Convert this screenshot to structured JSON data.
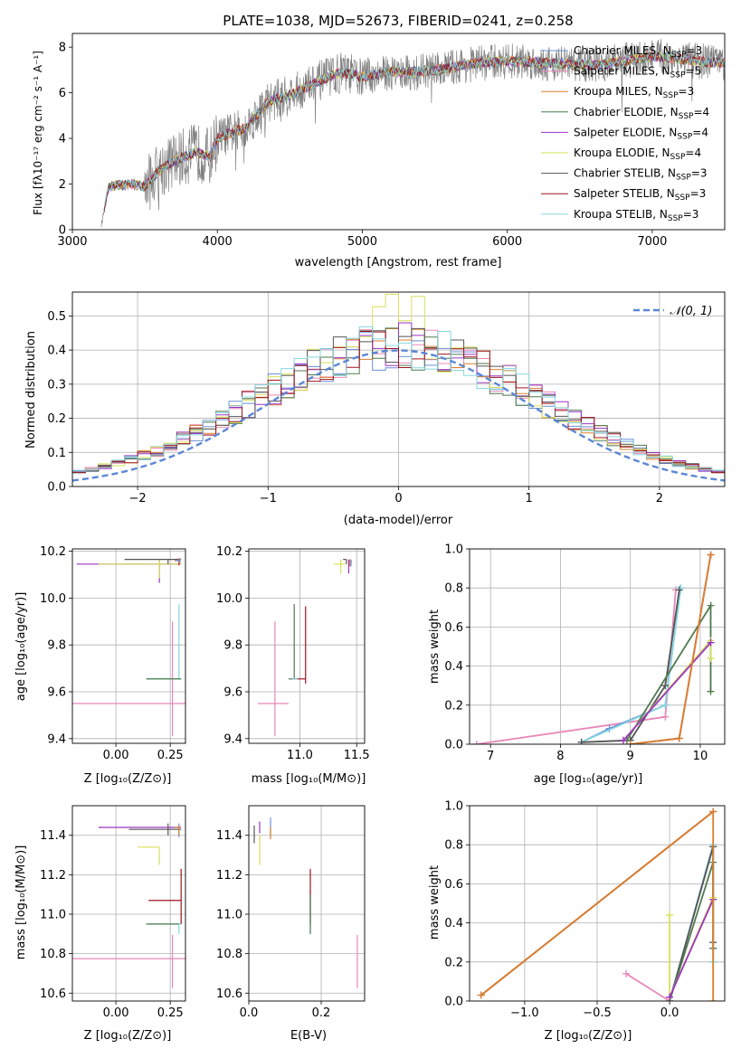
{
  "figure": {
    "title": "PLATE=1038, MJD=52673, FIBERID=0241, z=0.258",
    "spectrum": {
      "xlabel": "wavelength [Angstrom, rest frame]",
      "ylabel": "Flux [fλ10⁻¹⁷ erg cm⁻² s⁻¹ A⁻¹]"
    },
    "histogram": {
      "xlabel": "(data-model)/error",
      "ylabel": "Normed distribution",
      "gauss_label": "𝒩(0, 1)"
    },
    "row3": {
      "z_age_xlabel": "Z [log₁₀(Z/Z⊙)]",
      "z_age_ylabel": "age  [log₁₀(age/yr)]",
      "mass_age_xlabel": "mass [log₁₀(M/M⊙)]",
      "age_weight_xlabel": "age  [log₁₀(age/yr)]",
      "age_weight_ylabel": "mass weight"
    },
    "row4": {
      "z_mass_xlabel": "Z [log₁₀(Z/Z⊙)]",
      "z_mass_ylabel": "mass [log₁₀(M/M⊙)]",
      "ebv_xlabel": "E(B-V)",
      "z_weight_xlabel": "Z [log₁₀(Z/Z⊙)]",
      "z_weight_ylabel": "mass weight"
    }
  },
  "legend": [
    {
      "name": "Chabrier MILES, N_SSP=3",
      "color": "#6a8fd8"
    },
    {
      "name": "Salpeter MILES, N_SSP=5",
      "color": "#e887b8"
    },
    {
      "name": "Kroupa MILES, N_SSP=3",
      "color": "#d9802e"
    },
    {
      "name": "Chabrier ELODIE, N_SSP=4",
      "color": "#4e7a4e"
    },
    {
      "name": "Salpeter ELODIE, N_SSP=4",
      "color": "#9b34c4"
    },
    {
      "name": "Kroupa ELODIE, N_SSP=4",
      "color": "#d6e05a"
    },
    {
      "name": "Chabrier STELIB, N_SSP=3",
      "color": "#555555"
    },
    {
      "name": "Salpeter STELIB, N_SSP=3",
      "color": "#a0141e"
    },
    {
      "name": "Kroupa STELIB, N_SSP=3",
      "color": "#86d8e0"
    }
  ],
  "chart_data": [
    {
      "type": "line",
      "id": "spectrum",
      "xlim": [
        3000,
        7500
      ],
      "ylim": [
        0,
        8.6
      ],
      "xticks": [
        3000,
        4000,
        5000,
        6000,
        7000
      ],
      "yticks": [
        0,
        2,
        4,
        6,
        8
      ],
      "grid": false,
      "legend_position": "top-right",
      "continuum": {
        "x": [
          3200,
          3250,
          3400,
          3500,
          3600,
          3700,
          3850,
          3950,
          4000,
          4200,
          4350,
          4500,
          4700,
          4850,
          5000,
          5200,
          5400,
          5600,
          5800,
          6000,
          6300,
          6600,
          7000,
          7300,
          7500
        ],
        "y": [
          0.2,
          1.9,
          2.0,
          1.9,
          2.6,
          3.0,
          3.4,
          3.2,
          4.0,
          4.5,
          5.6,
          5.9,
          6.5,
          6.9,
          6.7,
          6.9,
          6.9,
          7.1,
          7.3,
          7.4,
          7.3,
          7.2,
          7.6,
          7.4,
          7.3
        ]
      }
    },
    {
      "type": "step",
      "id": "residual_histogram",
      "xlim": [
        -2.5,
        2.5
      ],
      "ylim": [
        0,
        0.57
      ],
      "xticks": [
        -2,
        -1,
        0,
        1,
        2
      ],
      "yticks": [
        0.0,
        0.1,
        0.2,
        0.3,
        0.4,
        0.5
      ],
      "grid": true,
      "legend_position": "top-right",
      "bin_edges_start": -2.5,
      "bin_width": 0.1,
      "gaussian": {
        "mean": 0,
        "sigma": 1
      }
    },
    {
      "type": "errorbar",
      "id": "z_vs_age",
      "xlim": [
        -0.2,
        0.32
      ],
      "ylim": [
        9.38,
        10.21
      ],
      "xticks": [
        0.0,
        0.25
      ],
      "yticks": [
        9.4,
        9.6,
        9.8,
        10.0,
        10.2
      ],
      "grid": true,
      "points": [
        {
          "x": 0.26,
          "y": 9.55,
          "xerr": [
            0.46,
            0.06
          ],
          "yerr": [
            0.14,
            0.35
          ],
          "color": "#e887b8"
        },
        {
          "x": 0.29,
          "y": 9.655,
          "xerr": [
            0.15,
            0.01
          ],
          "yerr": [
            0.0,
            0.32
          ],
          "color": "#86d8e0"
        },
        {
          "x": 0.26,
          "y": 9.655,
          "xerr": [
            0.12,
            0.04
          ],
          "yerr": [
            0.0,
            0.0
          ],
          "color": "#4e7a4e"
        },
        {
          "x": 0.2,
          "y": 10.145,
          "xerr": [
            0.38,
            0.1
          ],
          "yerr": [
            0.08,
            0.02
          ],
          "color": "#9b34c4"
        },
        {
          "x": 0.2,
          "y": 10.145,
          "xerr": [
            0.28,
            0.1
          ],
          "yerr": [
            0.06,
            0.02
          ],
          "color": "#d6e05a"
        },
        {
          "x": 0.24,
          "y": 10.165,
          "xerr": [
            0.2,
            0.06
          ],
          "yerr": [
            0.02,
            0.0
          ],
          "color": "#555555"
        },
        {
          "x": 0.29,
          "y": 10.16,
          "xerr": [
            0.02,
            0.0
          ],
          "yerr": [
            0.02,
            0.01
          ],
          "color": "#a0141e"
        },
        {
          "x": 0.29,
          "y": 10.16,
          "xerr": [
            0.02,
            0.0
          ],
          "yerr": [
            0.01,
            0.01
          ],
          "color": "#d9802e"
        },
        {
          "x": 0.295,
          "y": 10.16,
          "xerr": [
            0.02,
            0.0
          ],
          "yerr": [
            0.01,
            0.01
          ],
          "color": "#6a8fd8"
        }
      ]
    },
    {
      "type": "errorbar",
      "id": "mass_vs_age",
      "xlim": [
        10.55,
        11.57
      ],
      "ylim": [
        9.38,
        10.21
      ],
      "xticks": [
        10.5,
        11.0,
        11.5
      ],
      "yticks": [
        9.4,
        9.6,
        9.8,
        10.0,
        10.2
      ],
      "grid": true,
      "points": [
        {
          "x": 10.78,
          "y": 9.55,
          "xerr": [
            0.15,
            0.12
          ],
          "yerr": [
            0.14,
            0.35
          ],
          "color": "#e887b8"
        },
        {
          "x": 10.95,
          "y": 9.655,
          "xerr": [
            0.05,
            0.0
          ],
          "yerr": [
            0.0,
            0.32
          ],
          "color": "#4e7a4e"
        },
        {
          "x": 11.05,
          "y": 9.655,
          "xerr": [
            0.12,
            0.0
          ],
          "yerr": [
            0.02,
            0.31
          ],
          "color": "#a0141e"
        },
        {
          "x": 10.98,
          "y": 9.655,
          "xerr": [
            0.05,
            0.0
          ],
          "yerr": [
            0.0,
            0.0
          ],
          "color": "#86d8e0"
        },
        {
          "x": 11.43,
          "y": 10.145,
          "xerr": [
            0.0,
            0.01
          ],
          "yerr": [
            0.04,
            0.02
          ],
          "color": "#9b34c4"
        },
        {
          "x": 11.36,
          "y": 10.145,
          "xerr": [
            0.06,
            0.04
          ],
          "yerr": [
            0.04,
            0.02
          ],
          "color": "#d6e05a"
        },
        {
          "x": 11.41,
          "y": 10.165,
          "xerr": [
            0.03,
            0.0
          ],
          "yerr": [
            0.02,
            0.0
          ],
          "color": "#555555"
        },
        {
          "x": 11.45,
          "y": 10.155,
          "xerr": [
            0.0,
            0.01
          ],
          "yerr": [
            0.02,
            0.01
          ],
          "color": "#6a8fd8"
        },
        {
          "x": 11.44,
          "y": 10.155,
          "xerr": [
            0.0,
            0.0
          ],
          "yerr": [
            0.02,
            0.01
          ],
          "color": "#d9802e"
        }
      ]
    },
    {
      "type": "line",
      "id": "age_vs_weight",
      "xlim": [
        6.7,
        10.35
      ],
      "ylim": [
        0,
        1.0
      ],
      "xticks": [
        7,
        8,
        9,
        10
      ],
      "yticks": [
        0.0,
        0.2,
        0.4,
        0.6,
        0.8,
        1.0
      ],
      "grid": true,
      "series": [
        {
          "color": "#e887b8",
          "x": [
            6.8,
            9.5,
            9.65
          ],
          "y": [
            0.0,
            0.14,
            0.79
          ]
        },
        {
          "color": "#6a8fd8",
          "x": [
            8.3,
            8.7,
            9.5,
            9.72
          ],
          "y": [
            0.01,
            0.08,
            0.2,
            0.8
          ]
        },
        {
          "color": "#86d8e0",
          "x": [
            8.3,
            9.5,
            9.72
          ],
          "y": [
            0.01,
            0.2,
            0.8
          ]
        },
        {
          "color": "#555555",
          "x": [
            8.3,
            9.0,
            9.5,
            9.7
          ],
          "y": [
            0.01,
            0.02,
            0.3,
            0.79
          ]
        },
        {
          "color": "#4e7a4e",
          "x": [
            8.95,
            10.15,
            10.15
          ],
          "y": [
            0.02,
            0.71,
            0.27
          ]
        },
        {
          "color": "#d6e05a",
          "x": [
            8.9,
            10.15,
            10.15
          ],
          "y": [
            0.02,
            0.53,
            0.44
          ]
        },
        {
          "color": "#9b34c4",
          "x": [
            8.9,
            10.15
          ],
          "y": [
            0.02,
            0.52
          ]
        },
        {
          "color": "#a0141e",
          "x": [
            9.0,
            9.7,
            10.15
          ],
          "y": [
            0.0,
            0.03,
            0.97
          ]
        },
        {
          "color": "#d9802e",
          "x": [
            9.0,
            9.7,
            10.15
          ],
          "y": [
            0.0,
            0.03,
            0.97
          ]
        }
      ]
    },
    {
      "type": "errorbar",
      "id": "z_vs_mass",
      "xlim": [
        -0.2,
        0.32
      ],
      "ylim": [
        10.56,
        11.55
      ],
      "xticks": [
        0.0,
        0.25
      ],
      "yticks": [
        10.6,
        10.8,
        11.0,
        11.2,
        11.4
      ],
      "grid": true,
      "points": [
        {
          "x": 0.26,
          "y": 10.775,
          "xerr": [
            0.46,
            0.06
          ],
          "yerr": [
            0.15,
            0.12
          ],
          "color": "#e887b8"
        },
        {
          "x": 0.29,
          "y": 10.95,
          "xerr": [
            0.15,
            0.01
          ],
          "yerr": [
            0.05,
            0.0
          ],
          "color": "#86d8e0"
        },
        {
          "x": 0.3,
          "y": 11.07,
          "xerr": [
            0.15,
            0.0
          ],
          "yerr": [
            0.12,
            0.16
          ],
          "color": "#a0141e"
        },
        {
          "x": 0.29,
          "y": 10.95,
          "xerr": [
            0.15,
            0.0
          ],
          "yerr": [
            0.0,
            0.0
          ],
          "color": "#4e7a4e"
        },
        {
          "x": 0.2,
          "y": 11.34,
          "xerr": [
            0.1,
            0.0
          ],
          "yerr": [
            0.09,
            0.0
          ],
          "color": "#d6e05a"
        },
        {
          "x": 0.2,
          "y": 11.44,
          "xerr": [
            0.28,
            0.1
          ],
          "yerr": [
            0.0,
            0.0
          ],
          "color": "#9b34c4"
        },
        {
          "x": 0.24,
          "y": 11.43,
          "xerr": [
            0.18,
            0.06
          ],
          "yerr": [
            0.03,
            0.03
          ],
          "color": "#555555"
        },
        {
          "x": 0.29,
          "y": 11.44,
          "xerr": [
            0.02,
            0.0
          ],
          "yerr": [
            0.05,
            0.02
          ],
          "color": "#6a8fd8"
        },
        {
          "x": 0.29,
          "y": 11.44,
          "xerr": [
            0.02,
            0.0
          ],
          "yerr": [
            0.04,
            0.01
          ],
          "color": "#d9802e"
        }
      ]
    },
    {
      "type": "errorbar",
      "id": "ebv_vs_mass",
      "xlim": [
        0.0,
        0.32
      ],
      "ylim": [
        10.56,
        11.55
      ],
      "xticks": [
        0.0,
        0.2
      ],
      "yticks": [
        10.6,
        10.8,
        11.0,
        11.2,
        11.4
      ],
      "grid": true,
      "points": [
        {
          "x": 0.3,
          "y": 10.775,
          "xerr": [
            0.0,
            0.0
          ],
          "yerr": [
            0.15,
            0.12
          ],
          "color": "#e887b8"
        },
        {
          "x": 0.17,
          "y": 11.0,
          "xerr": [
            0.0,
            0.0
          ],
          "yerr": [
            0.1,
            0.12
          ],
          "color": "#86d8e0"
        },
        {
          "x": 0.17,
          "y": 11.07,
          "xerr": [
            0.0,
            0.0
          ],
          "yerr": [
            0.12,
            0.16
          ],
          "color": "#a0141e"
        },
        {
          "x": 0.17,
          "y": 11.0,
          "xerr": [
            0.0,
            0.0
          ],
          "yerr": [
            0.1,
            0.1
          ],
          "color": "#4e7a4e"
        },
        {
          "x": 0.03,
          "y": 11.34,
          "xerr": [
            0.0,
            0.0
          ],
          "yerr": [
            0.09,
            0.06
          ],
          "color": "#d6e05a"
        },
        {
          "x": 0.03,
          "y": 11.44,
          "xerr": [
            0.0,
            0.0
          ],
          "yerr": [
            0.03,
            0.03
          ],
          "color": "#9b34c4"
        },
        {
          "x": 0.015,
          "y": 11.41,
          "xerr": [
            0.0,
            0.0
          ],
          "yerr": [
            0.05,
            0.04
          ],
          "color": "#555555"
        },
        {
          "x": 0.06,
          "y": 11.44,
          "xerr": [
            0.0,
            0.0
          ],
          "yerr": [
            0.05,
            0.05
          ],
          "color": "#6a8fd8"
        },
        {
          "x": 0.06,
          "y": 11.42,
          "xerr": [
            0.0,
            0.0
          ],
          "yerr": [
            0.04,
            0.02
          ],
          "color": "#d9802e"
        }
      ]
    },
    {
      "type": "line",
      "id": "z_vs_weight",
      "xlim": [
        -1.38,
        0.38
      ],
      "ylim": [
        0,
        1.0
      ],
      "xticks": [
        -1.0,
        -0.5,
        0.0
      ],
      "yticks": [
        0.0,
        0.2,
        0.4,
        0.6,
        0.8,
        1.0
      ],
      "grid": true,
      "series": [
        {
          "color": "#e887b8",
          "x": [
            -0.3,
            0.0,
            0.3
          ],
          "y": [
            0.14,
            0.0,
            0.79
          ]
        },
        {
          "color": "#6a8fd8",
          "x": [
            0.0,
            0.3,
            0.3
          ],
          "y": [
            0.0,
            0.8,
            0.2
          ]
        },
        {
          "color": "#86d8e0",
          "x": [
            0.0,
            0.3,
            0.3
          ],
          "y": [
            0.0,
            0.8,
            0.2
          ]
        },
        {
          "color": "#555555",
          "x": [
            0.0,
            0.3,
            0.3
          ],
          "y": [
            0.0,
            0.79,
            0.3
          ]
        },
        {
          "color": "#4e7a4e",
          "x": [
            0.0,
            0.3,
            0.3
          ],
          "y": [
            0.0,
            0.71,
            0.27
          ]
        },
        {
          "color": "#d6e05a",
          "x": [
            0.0,
            0.0,
            0.0,
            0.3,
            0.3
          ],
          "y": [
            0.0,
            0.44,
            0.02,
            0.53,
            0.0
          ]
        },
        {
          "color": "#9b34c4",
          "x": [
            0.0,
            0.3
          ],
          "y": [
            0.02,
            0.52
          ]
        },
        {
          "color": "#a0141e",
          "x": [
            -1.3,
            0.3
          ],
          "y": [
            0.03,
            0.97
          ]
        },
        {
          "color": "#d9802e",
          "x": [
            -1.3,
            0.3,
            0.3
          ],
          "y": [
            0.03,
            0.97,
            0.0
          ]
        }
      ]
    }
  ]
}
